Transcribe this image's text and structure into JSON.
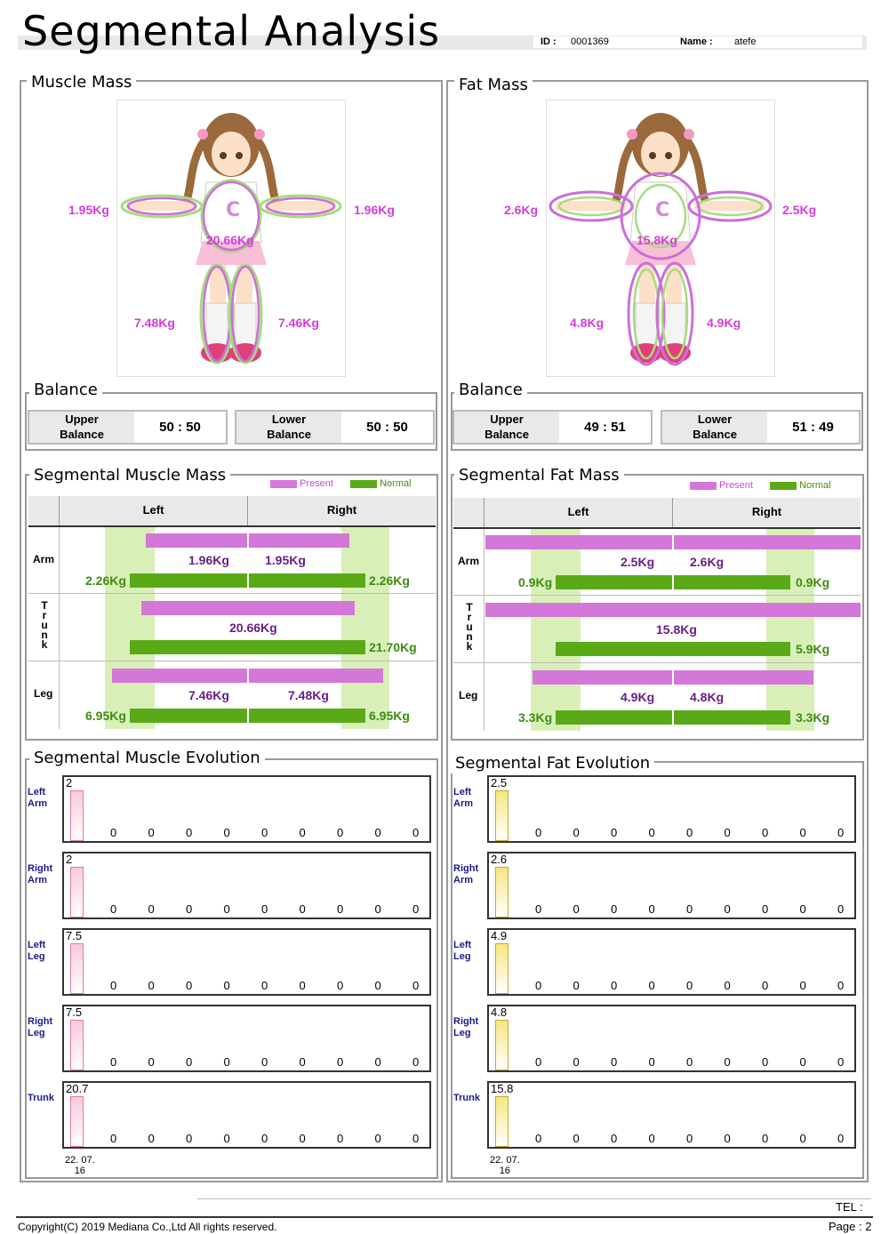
{
  "header": {
    "title": "Segmental Analysis",
    "id_label": "ID :",
    "id_value": "0001369",
    "name_label": "Name :",
    "name_value": "atefe"
  },
  "colors": {
    "present": "#d378d8",
    "normal": "#5aaa18",
    "label_magenta": "#d13ed6",
    "muscle_bar": "#f9c8dc",
    "fat_bar": "#f6e680"
  },
  "muscle_mass": {
    "title": "Muscle Mass",
    "right_arm": "1.95Kg",
    "left_arm": "1.96Kg",
    "trunk": "20.66Kg",
    "right_leg": "7.48Kg",
    "left_leg": "7.46Kg",
    "balance_title": "Balance",
    "upper_label_1": "Upper",
    "upper_label_2": "Balance",
    "upper_value": "50 : 50",
    "lower_label_1": "Lower",
    "lower_label_2": "Balance",
    "lower_value": "50 : 50"
  },
  "fat_mass": {
    "title": "Fat Mass",
    "right_arm": "2.6Kg",
    "left_arm": "2.5Kg",
    "trunk": "15.8Kg",
    "right_leg": "4.8Kg",
    "left_leg": "4.9Kg",
    "balance_title": "Balance",
    "upper_label_1": "Upper",
    "upper_label_2": "Balance",
    "upper_value": "49 : 51",
    "lower_label_1": "Lower",
    "lower_label_2": "Balance",
    "lower_value": "51 : 49"
  },
  "seg_muscle": {
    "title": "Segmental Muscle Mass",
    "legend_present": "Present",
    "legend_normal": "Normal",
    "col_left": "Left",
    "col_right": "Right",
    "row_arm": "Arm",
    "row_trunk": [
      "T",
      "r",
      "u",
      "n",
      "k"
    ],
    "row_leg": "Leg",
    "arm_left_present": "1.96Kg",
    "arm_right_present": "1.95Kg",
    "arm_left_normal": "2.26Kg",
    "arm_right_normal": "2.26Kg",
    "trunk_present": "20.66Kg",
    "trunk_normal": "21.70Kg",
    "leg_left_present": "7.46Kg",
    "leg_right_present": "7.48Kg",
    "leg_left_normal": "6.95Kg",
    "leg_right_normal": "6.95Kg"
  },
  "seg_fat": {
    "title": "Segmental Fat Mass",
    "legend_present": "Present",
    "legend_normal": "Normal",
    "col_left": "Left",
    "col_right": "Right",
    "row_arm": "Arm",
    "row_trunk": [
      "T",
      "r",
      "u",
      "n",
      "k"
    ],
    "row_leg": "Leg",
    "arm_left_present": "2.5Kg",
    "arm_right_present": "2.6Kg",
    "arm_left_normal": "0.9Kg",
    "arm_right_normal": "0.9Kg",
    "trunk_present": "15.8Kg",
    "trunk_normal": "5.9Kg",
    "leg_left_present": "4.9Kg",
    "leg_right_present": "4.8Kg",
    "leg_left_normal": "3.3Kg",
    "leg_right_normal": "3.3Kg"
  },
  "muscle_evolution": {
    "title": "Segmental Muscle Evolution",
    "rows": [
      {
        "label1": "Left",
        "label2": "Arm",
        "first": "2",
        "zeros": [
          "0",
          "0",
          "0",
          "0",
          "0",
          "0",
          "0",
          "0",
          "0"
        ]
      },
      {
        "label1": "Right",
        "label2": "Arm",
        "first": "2",
        "zeros": [
          "0",
          "0",
          "0",
          "0",
          "0",
          "0",
          "0",
          "0",
          "0"
        ]
      },
      {
        "label1": "Left",
        "label2": "Leg",
        "first": "7.5",
        "zeros": [
          "0",
          "0",
          "0",
          "0",
          "0",
          "0",
          "0",
          "0",
          "0"
        ]
      },
      {
        "label1": "Right",
        "label2": "Leg",
        "first": "7.5",
        "zeros": [
          "0",
          "0",
          "0",
          "0",
          "0",
          "0",
          "0",
          "0",
          "0"
        ]
      },
      {
        "label1": "Trunk",
        "label2": "",
        "first": "20.7",
        "zeros": [
          "0",
          "0",
          "0",
          "0",
          "0",
          "0",
          "0",
          "0",
          "0"
        ]
      }
    ],
    "date_1": "22. 07.",
    "date_2": "16"
  },
  "fat_evolution": {
    "title": "Segmental Fat Evolution",
    "rows": [
      {
        "label1": "Left",
        "label2": "Arm",
        "first": "2.5",
        "zeros": [
          "0",
          "0",
          "0",
          "0",
          "0",
          "0",
          "0",
          "0",
          "0"
        ]
      },
      {
        "label1": "Right",
        "label2": "Arm",
        "first": "2.6",
        "zeros": [
          "0",
          "0",
          "0",
          "0",
          "0",
          "0",
          "0",
          "0",
          "0"
        ]
      },
      {
        "label1": "Left",
        "label2": "Leg",
        "first": "4.9",
        "zeros": [
          "0",
          "0",
          "0",
          "0",
          "0",
          "0",
          "0",
          "0",
          "0"
        ]
      },
      {
        "label1": "Right",
        "label2": "Leg",
        "first": "4.8",
        "zeros": [
          "0",
          "0",
          "0",
          "0",
          "0",
          "0",
          "0",
          "0",
          "0"
        ]
      },
      {
        "label1": "Trunk",
        "label2": "",
        "first": "15.8",
        "zeros": [
          "0",
          "0",
          "0",
          "0",
          "0",
          "0",
          "0",
          "0",
          "0"
        ]
      }
    ],
    "date_1": "22. 07.",
    "date_2": "16"
  },
  "footer": {
    "tel": "TEL :",
    "copyright": "Copyright(C) 2019 Mediana Co.,Ltd All rights reserved.",
    "page": "Page : 2"
  }
}
